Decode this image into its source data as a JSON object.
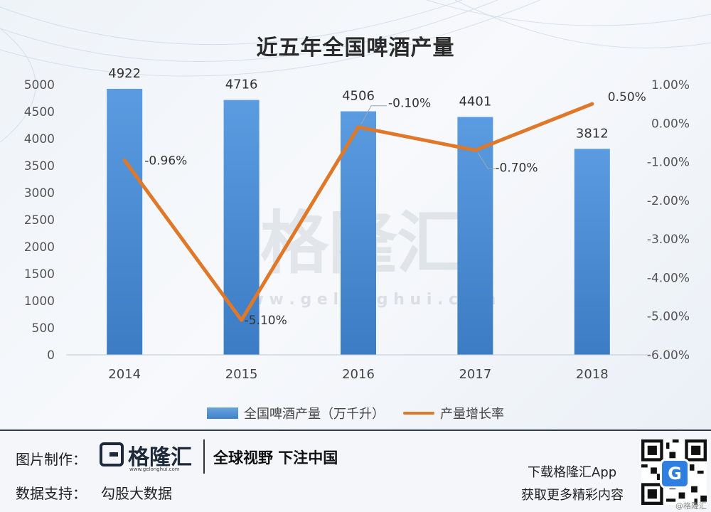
{
  "title": "近五年全国啤酒产量",
  "watermark": {
    "logo_text": "格隆汇",
    "url": "w w w . g e l o n g h u i . c o m"
  },
  "chart_data": {
    "type": "bar",
    "categories": [
      "2014",
      "2015",
      "2016",
      "2017",
      "2018"
    ],
    "series": [
      {
        "name": "全国啤酒产量（万千升）",
        "type": "bar",
        "axis": "left",
        "values": [
          4922,
          4716,
          4506,
          4401,
          3812
        ],
        "color": "#4a8fd6"
      },
      {
        "name": "产量增长率",
        "type": "line",
        "axis": "right",
        "values": [
          -0.96,
          -5.1,
          -0.1,
          -0.7,
          0.5
        ],
        "labels": [
          "-0.96%",
          "-5.10%",
          "-0.10%",
          "-0.70%",
          "0.50%"
        ],
        "color": "#e0782a"
      }
    ],
    "y_left": {
      "ylim": [
        0,
        5000
      ],
      "ticks": [
        "0",
        "500",
        "1000",
        "1500",
        "2000",
        "2500",
        "3000",
        "3500",
        "4000",
        "4500",
        "5000"
      ]
    },
    "y_right": {
      "ylim": [
        -6,
        1
      ],
      "ticks": [
        "1.00%",
        "0.00%",
        "-1.00%",
        "-2.00%",
        "-3.00%",
        "-4.00%",
        "-5.00%",
        "-6.00%"
      ]
    },
    "legend_position": "bottom",
    "grid": false
  },
  "footer": {
    "made_by_label": "图片制作：",
    "brand_name": "格隆汇",
    "brand_url": "www.gelonghui.com",
    "slogan": "全球视野 下注中国",
    "data_support_label": "数据支持：",
    "data_support_value": "勾股大数据",
    "download_text": "下载格隆汇App",
    "more_text": "获取更多精彩内容",
    "qr_badge": "G",
    "corner_mark": "@格隆汇"
  }
}
